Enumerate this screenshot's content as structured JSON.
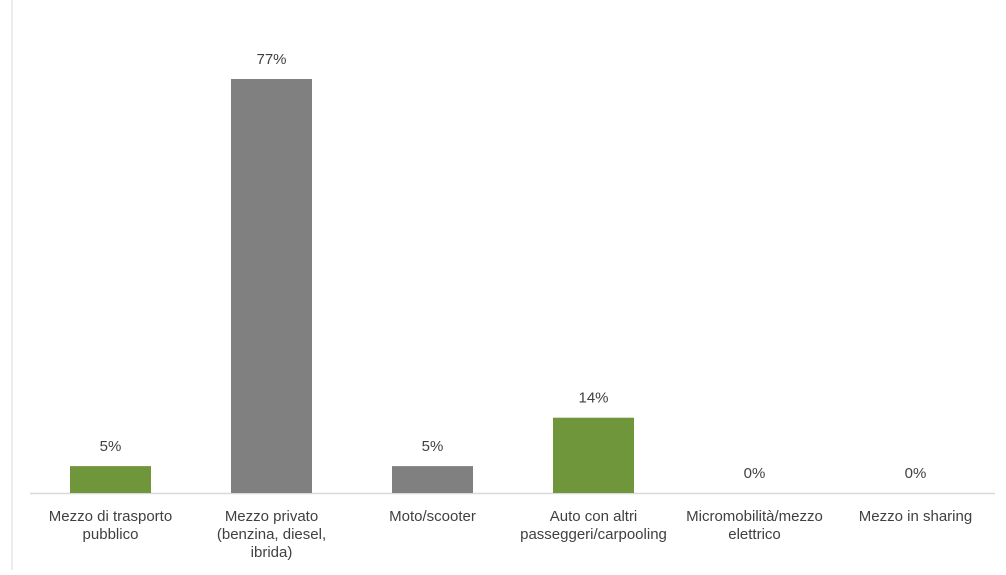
{
  "chart_data": {
    "type": "bar",
    "categories": [
      [
        "Mezzo di trasporto",
        "pubblico"
      ],
      [
        "Mezzo privato",
        "(benzina, diesel,",
        "ibrida)"
      ],
      [
        "Moto/scooter"
      ],
      [
        "Auto con altri",
        "passeggeri/carpooling"
      ],
      [
        "Micromobilità/mezzo",
        "elettrico"
      ],
      [
        "Mezzo in sharing"
      ]
    ],
    "values": [
      5,
      77,
      5,
      14,
      0,
      0
    ],
    "value_labels": [
      "5%",
      "77%",
      "5%",
      "14%",
      "0%",
      "0%"
    ],
    "bar_colors": [
      "#70963c",
      "#808080",
      "#808080",
      "#70963c",
      "#70963c",
      "#808080"
    ],
    "ylim": [
      0,
      77
    ],
    "grid": false,
    "legend": "none"
  }
}
